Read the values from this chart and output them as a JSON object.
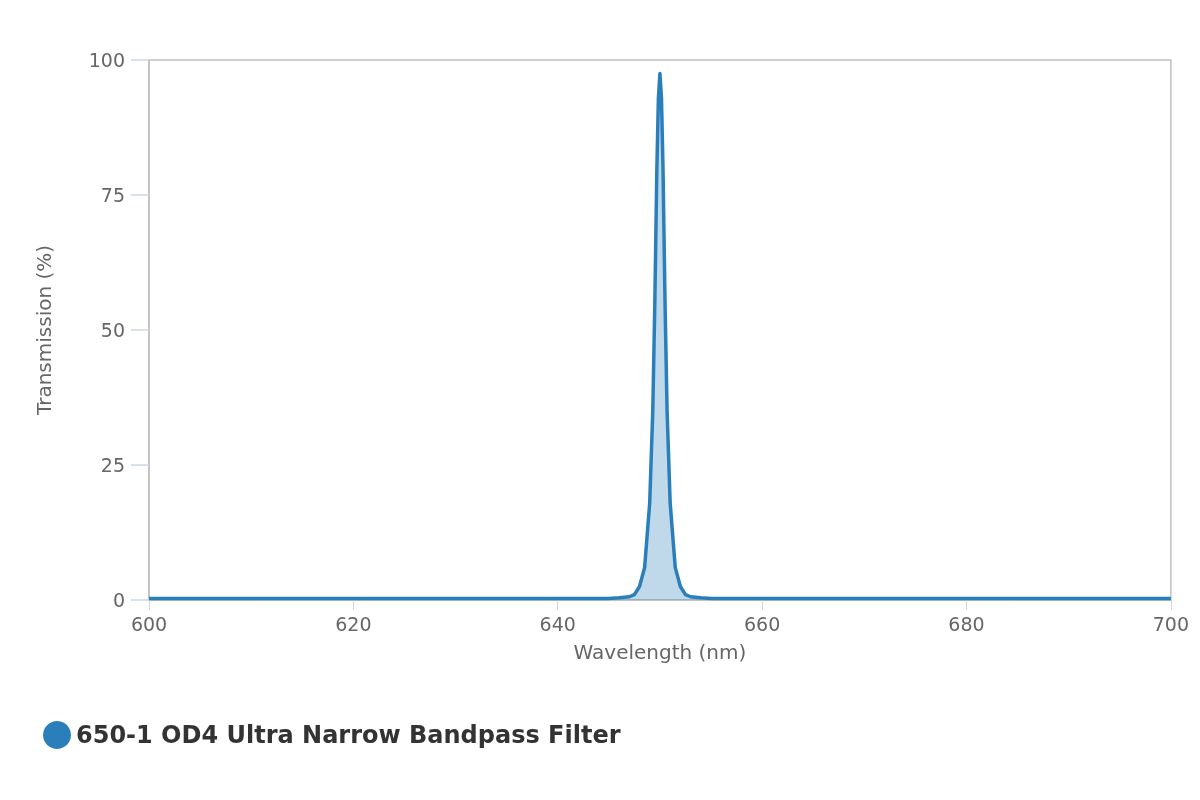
{
  "chart_data": {
    "type": "area",
    "xlabel": "Wavelength (nm)",
    "ylabel": "Transmission (%)",
    "xlim": [
      600,
      700
    ],
    "xticks": [
      600,
      620,
      640,
      660,
      680,
      700
    ],
    "ylim": [
      0,
      100
    ],
    "yticks": [
      0,
      25,
      50,
      75,
      100
    ],
    "grid": false,
    "legend": "bottom left",
    "marker": "none",
    "series": [
      {
        "name": "650-1 OD4 Ultra Narrow Bandpass Filter",
        "color": "#2a7fba",
        "x": [
          600,
          640,
          645,
          646,
          647,
          647.5,
          648,
          648.5,
          649,
          649.3,
          649.5,
          649.7,
          649.85,
          650,
          650.15,
          650.3,
          650.5,
          650.7,
          651,
          651.5,
          652,
          652.5,
          653,
          654,
          655,
          700
        ],
        "values": [
          0.3,
          0.3,
          0.3,
          0.4,
          0.6,
          1,
          2.5,
          6,
          18,
          35,
          55,
          80,
          93,
          97.5,
          93,
          80,
          55,
          35,
          18,
          6,
          2.5,
          1,
          0.6,
          0.4,
          0.3,
          0.3
        ]
      }
    ]
  }
}
